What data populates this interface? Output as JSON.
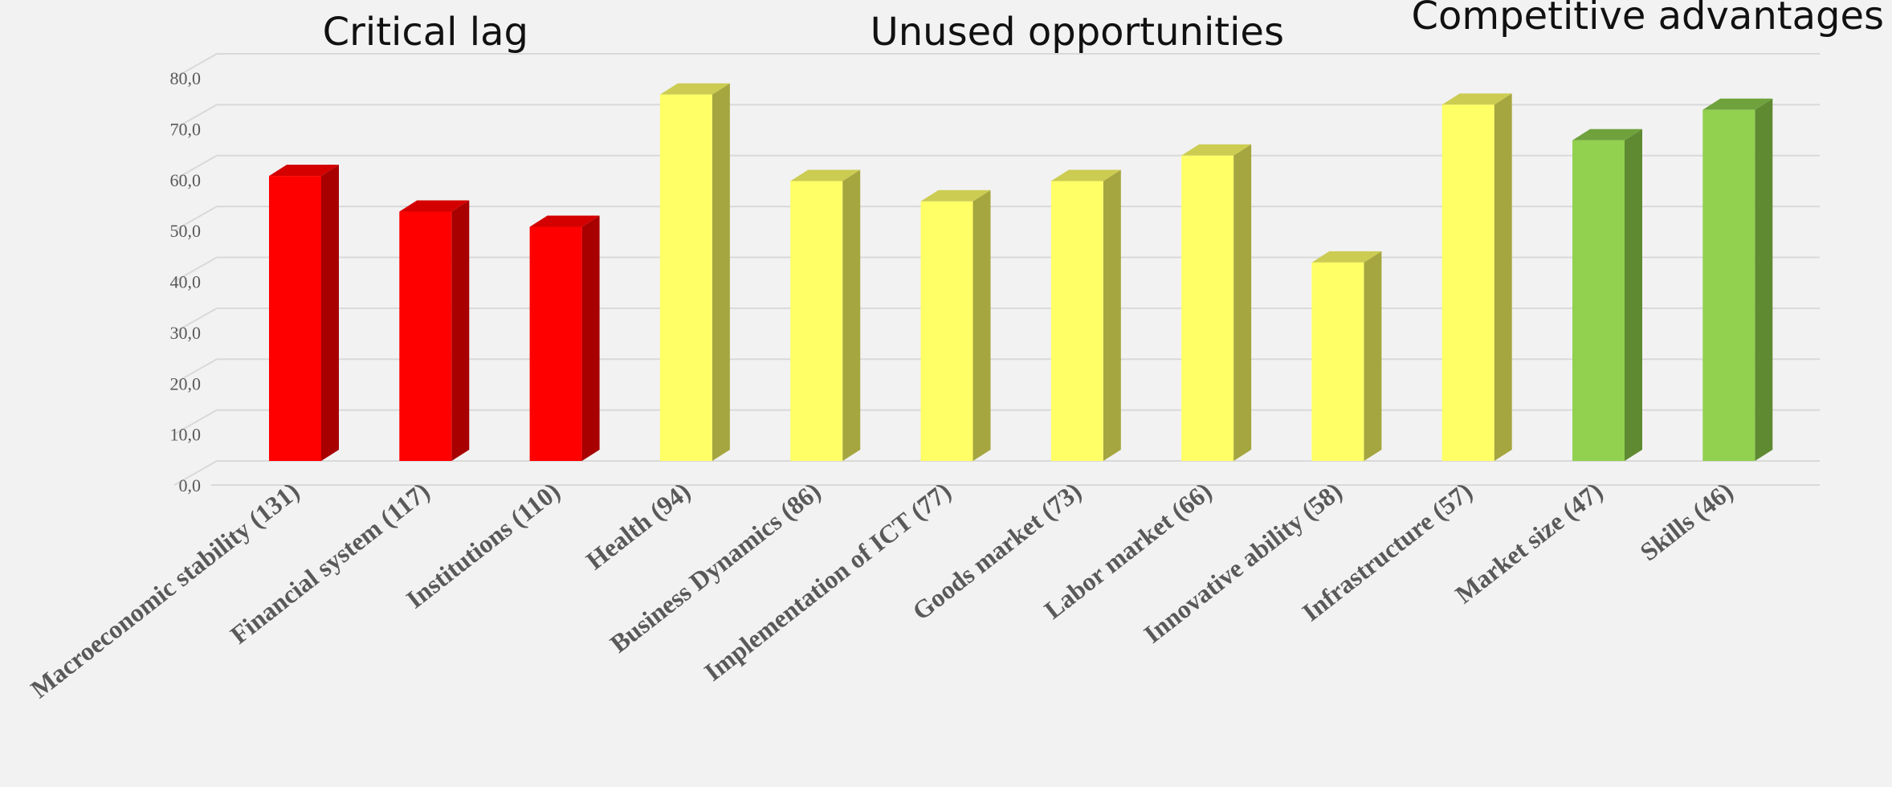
{
  "chart_data": {
    "type": "bar",
    "title": "",
    "xlabel": "",
    "ylabel": "",
    "ylim": [
      0,
      80
    ],
    "yticks": [
      "0,0",
      "10,0",
      "20,0",
      "30,0",
      "40,0",
      "50,0",
      "60,0",
      "70,0",
      "80,0"
    ],
    "grid": true,
    "style": "3d-column",
    "groups": [
      {
        "title": "Critical lag",
        "color": "#ff0000",
        "side_color": "#a80000",
        "top_color": "#d40000"
      },
      {
        "title": "Unused opportunities",
        "color": "#ffff66",
        "side_color": "#a6a640",
        "top_color": "#cccc52"
      },
      {
        "title": "Competitive advantages",
        "color": "#92d050",
        "side_color": "#5f8a32",
        "top_color": "#6fa23c"
      }
    ],
    "categories": [
      "Macroeconomic stability (131)",
      "Financial system (117)",
      "Institutions (110)",
      "Health (94)",
      "Business Dynamics (86)",
      "Implementation of ICT (77)",
      "Goods market (73)",
      "Labor market (66)",
      "Innovative ability (58)",
      "Infrastructure (57)",
      "Market size (47)",
      "Skills (46)"
    ],
    "values": [
      56,
      49,
      46,
      72,
      55,
      51,
      55,
      60,
      39,
      70,
      63,
      69
    ],
    "group_index": [
      0,
      0,
      0,
      1,
      1,
      1,
      1,
      1,
      1,
      1,
      2,
      2
    ]
  }
}
